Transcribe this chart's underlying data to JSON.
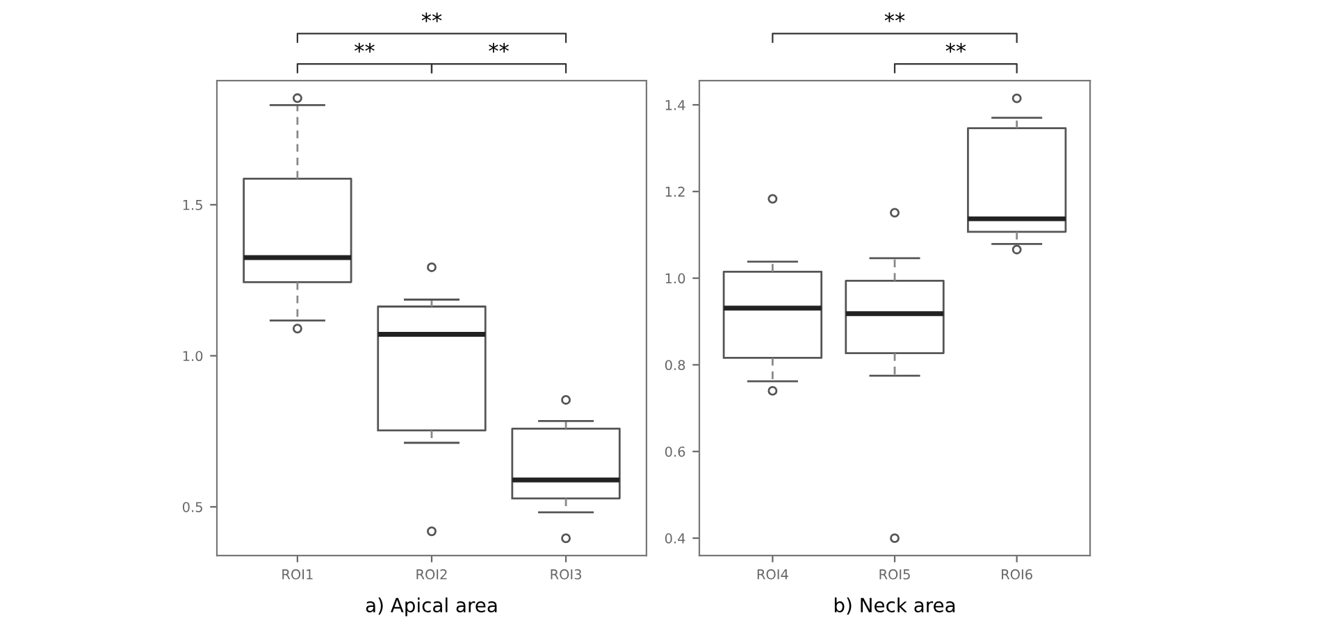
{
  "chart_data": [
    {
      "type": "box",
      "xlabel": "a) Apical area",
      "categories": [
        "ROI1",
        "ROI2",
        "ROI3"
      ],
      "boxes": [
        {
          "low": 1.117,
          "q1": 1.244,
          "median": 1.325,
          "q3": 1.586,
          "high": 1.83,
          "outliers": [
            1.853,
            1.09
          ]
        },
        {
          "low": 0.712,
          "q1": 0.753,
          "median": 1.071,
          "q3": 1.163,
          "high": 1.186,
          "outliers": [
            1.293,
            0.419
          ]
        },
        {
          "low": 0.482,
          "q1": 0.528,
          "median": 0.589,
          "q3": 0.759,
          "high": 0.784,
          "outliers": [
            0.854,
            0.396
          ]
        }
      ],
      "ylim": [
        0.339,
        1.911
      ],
      "yticks": [
        0.5,
        {
          "value": 1,
          "label": "1.0"
        },
        1.5
      ],
      "grid": false,
      "annotations": [
        "**",
        "**",
        "**"
      ]
    },
    {
      "type": "box",
      "xlabel": "b) Neck area",
      "categories": [
        "ROI4",
        "ROI5",
        "ROI6"
      ],
      "boxes": [
        {
          "low": 0.762,
          "q1": 0.816,
          "median": 0.931,
          "q3": 1.015,
          "high": 1.038,
          "outliers": [
            1.183,
            0.74
          ]
        },
        {
          "low": 0.775,
          "q1": 0.827,
          "median": 0.918,
          "q3": 0.994,
          "high": 1.046,
          "outliers": [
            1.151,
            0.4
          ]
        },
        {
          "low": 1.079,
          "q1": 1.107,
          "median": 1.137,
          "q3": 1.346,
          "high": 1.37,
          "outliers": [
            1.415,
            1.066
          ]
        }
      ],
      "ylim": [
        0.36,
        1.456
      ],
      "yticks": [
        0.4,
        0.6,
        0.8,
        {
          "value": 1,
          "label": "1.0"
        },
        1.2,
        1.4
      ],
      "grid": false,
      "annotations": [
        "**",
        "**"
      ]
    }
  ]
}
